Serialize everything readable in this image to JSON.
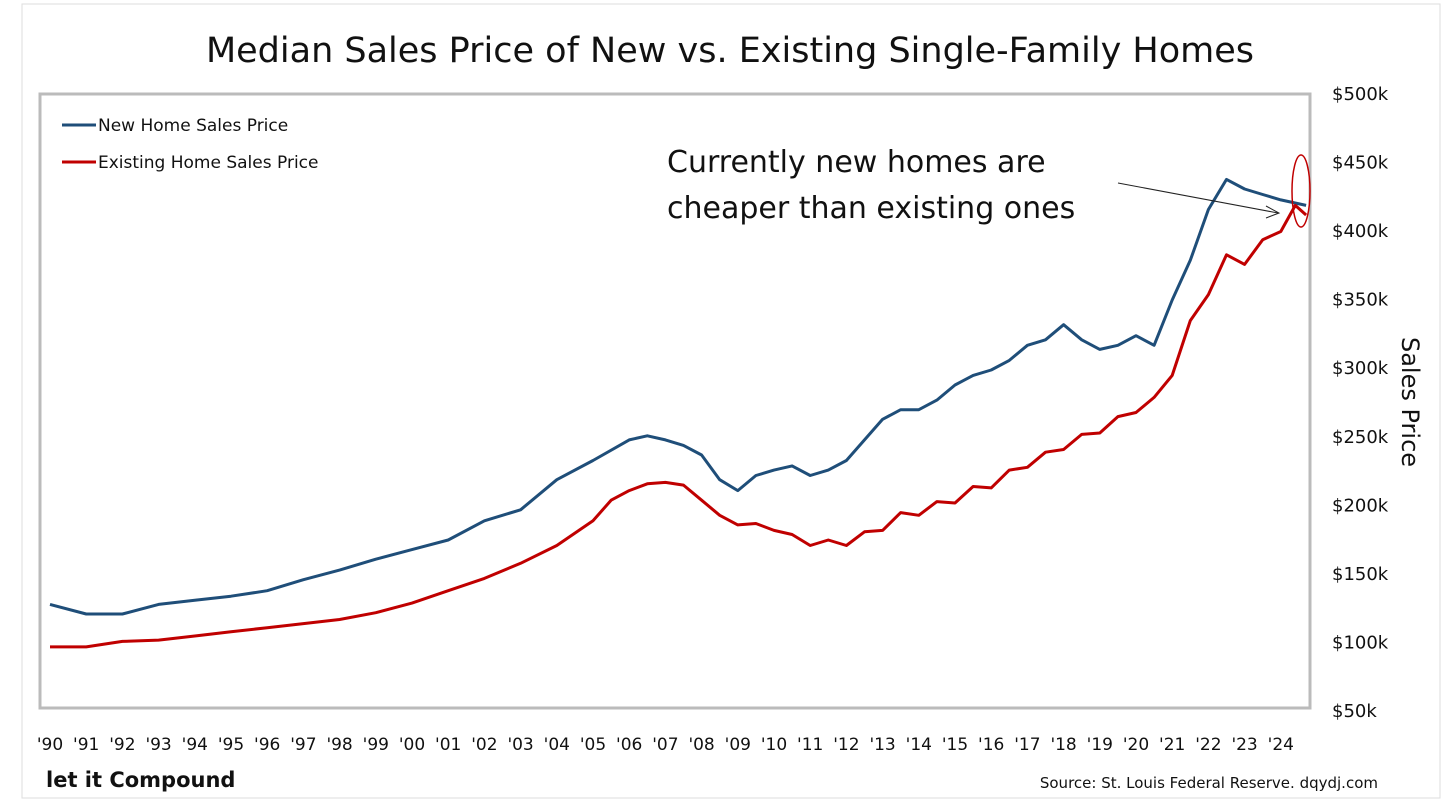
{
  "chart_data": {
    "type": "line",
    "title": "Median Sales Price of New vs. Existing Single-Family Homes",
    "xlabel": "",
    "ylabel": "Sales Price",
    "ylim": [
      50,
      500
    ],
    "xlim": [
      1990,
      2024.75
    ],
    "y_ticks": [
      "$50k",
      "$100k",
      "$150k",
      "$200k",
      "$250k",
      "$300k",
      "$350k",
      "$400k",
      "$450k",
      "$500k"
    ],
    "y_tick_values": [
      50,
      100,
      150,
      200,
      250,
      300,
      350,
      400,
      450,
      500
    ],
    "x_ticks": [
      "'90",
      "'91",
      "'92",
      "'93",
      "'94",
      "'95",
      "'96",
      "'97",
      "'98",
      "'99",
      "'00",
      "'01",
      "'02",
      "'03",
      "'04",
      "'05",
      "'06",
      "'07",
      "'08",
      "'09",
      "'10",
      "'11",
      "'12",
      "'13",
      "'14",
      "'15",
      "'16",
      "'17",
      "'18",
      "'19",
      "'20",
      "'21",
      "'22",
      "'23",
      "'24"
    ],
    "legend_position": "top-left",
    "grid": false,
    "series": [
      {
        "name": "New Home Sales Price",
        "color": "#1f4e79",
        "x": [
          1990,
          1991,
          1992,
          1993,
          1994,
          1995,
          1996,
          1997,
          1998,
          1999,
          2000,
          2001,
          2002,
          2003,
          2004,
          2005,
          2006,
          2006.5,
          2007,
          2007.5,
          2008,
          2008.5,
          2009,
          2009.5,
          2010,
          2010.5,
          2011,
          2011.5,
          2012,
          2012.5,
          2013,
          2013.5,
          2014,
          2014.5,
          2015,
          2015.5,
          2016,
          2016.5,
          2017,
          2017.5,
          2018,
          2018.5,
          2019,
          2019.5,
          2020,
          2020.5,
          2021,
          2021.5,
          2022,
          2022.5,
          2023,
          2023.5,
          2024,
          2024.7
        ],
        "values": [
          127,
          120,
          120,
          127,
          130,
          133,
          137,
          145,
          152,
          160,
          167,
          174,
          188,
          196,
          218,
          232,
          247,
          250,
          247,
          243,
          236,
          218,
          210,
          221,
          225,
          228,
          221,
          225,
          232,
          247,
          262,
          269,
          269,
          276,
          287,
          294,
          298,
          305,
          316,
          320,
          331,
          320,
          313,
          316,
          323,
          316,
          349,
          378,
          415,
          437,
          430,
          426,
          422,
          418
        ]
      },
      {
        "name": "Existing Home Sales Price",
        "color": "#c00000",
        "x": [
          1990,
          1991,
          1992,
          1993,
          1994,
          1995,
          1996,
          1997,
          1998,
          1999,
          2000,
          2001,
          2002,
          2003,
          2004,
          2005,
          2005.5,
          2006,
          2006.5,
          2007,
          2007.5,
          2008,
          2008.5,
          2009,
          2009.5,
          2010,
          2010.5,
          2011,
          2011.5,
          2012,
          2012.5,
          2013,
          2013.5,
          2014,
          2014.5,
          2015,
          2015.5,
          2016,
          2016.5,
          2017,
          2017.5,
          2018,
          2018.5,
          2019,
          2019.5,
          2020,
          2020.5,
          2021,
          2021.5,
          2022,
          2022.5,
          2023,
          2023.5,
          2024,
          2024.4,
          2024.7
        ],
        "values": [
          96,
          96,
          100,
          101,
          104,
          107,
          110,
          113,
          116,
          121,
          128,
          137,
          146,
          157,
          170,
          188,
          203,
          210,
          215,
          216,
          214,
          203,
          192,
          185,
          186,
          181,
          178,
          170,
          174,
          170,
          180,
          181,
          194,
          192,
          202,
          201,
          213,
          212,
          225,
          227,
          238,
          240,
          251,
          252,
          264,
          267,
          278,
          294,
          334,
          353,
          382,
          375,
          393,
          399,
          418,
          411
        ]
      }
    ],
    "annotations": [
      "Currently new homes are",
      "cheaper than existing ones"
    ],
    "branding": "let it Compound",
    "source": "Source: St. Louis Federal Reserve. dqydj.com"
  }
}
